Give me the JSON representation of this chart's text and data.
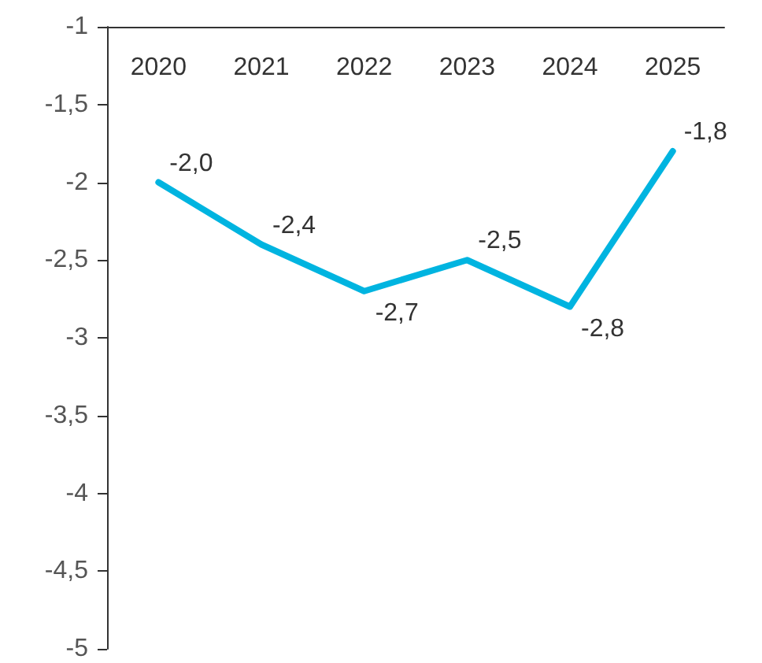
{
  "chart_data": {
    "type": "line",
    "categories": [
      "2020",
      "2021",
      "2022",
      "2023",
      "2024",
      "2025"
    ],
    "series": [
      {
        "color": "#00b4e0",
        "values": [
          -2.0,
          -2.4,
          -2.7,
          -2.5,
          -2.8,
          -1.8
        ],
        "value_labels": [
          "-2,0",
          "-2,4",
          "-2,7",
          "-2,5",
          "-2,8",
          "-1,8"
        ]
      }
    ],
    "ylim": [
      -5,
      -1
    ],
    "yticks": [
      -5,
      {
        "value": -4.5,
        "label": "-4,5"
      },
      -4,
      {
        "value": -3.5,
        "label": "-3,5"
      },
      -3,
      {
        "value": -2.5,
        "label": "-2,5"
      },
      -2,
      {
        "value": -1.5,
        "label": "-1,5"
      },
      -1
    ],
    "grid": false,
    "marker": "none",
    "line_style": "solid"
  }
}
